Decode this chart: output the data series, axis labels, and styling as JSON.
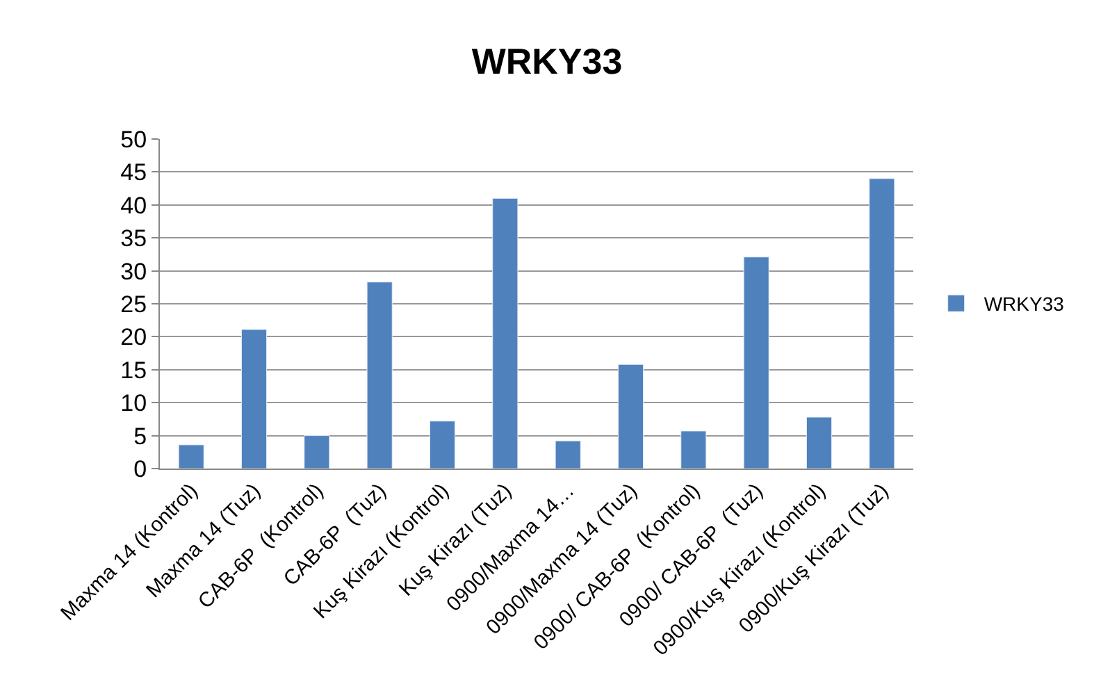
{
  "chart_data": {
    "type": "bar",
    "title": "WRKY33",
    "categories": [
      "Maxma 14 (Kontrol)",
      "Maxma 14 (Tuz)",
      "CAB-6P  (Kontrol)",
      "CAB-6P  (Tuz)",
      "Kuş Kirazı (Kontrol)",
      "Kuş Kirazı (Tuz)",
      "0900/Maxma 14…",
      "0900/Maxma 14 (Tuz)",
      "0900/ CAB-6P  (Kontrol)",
      "0900/ CAB-6P  (Tuz)",
      "0900/Kuş Kirazı (Kontrol)",
      "0900/Kuş Kirazı (Tuz)"
    ],
    "series": [
      {
        "name": "WRKY33",
        "color": "#4f81bd",
        "values": [
          3.6,
          21.1,
          5.0,
          28.3,
          7.2,
          41.0,
          4.2,
          15.8,
          5.7,
          32.1,
          7.8,
          44.0
        ]
      }
    ],
    "ylim": [
      0,
      50
    ],
    "yticks": [
      0,
      5,
      10,
      15,
      20,
      25,
      30,
      35,
      40,
      45,
      50
    ],
    "grid": "y",
    "legend": "right"
  }
}
